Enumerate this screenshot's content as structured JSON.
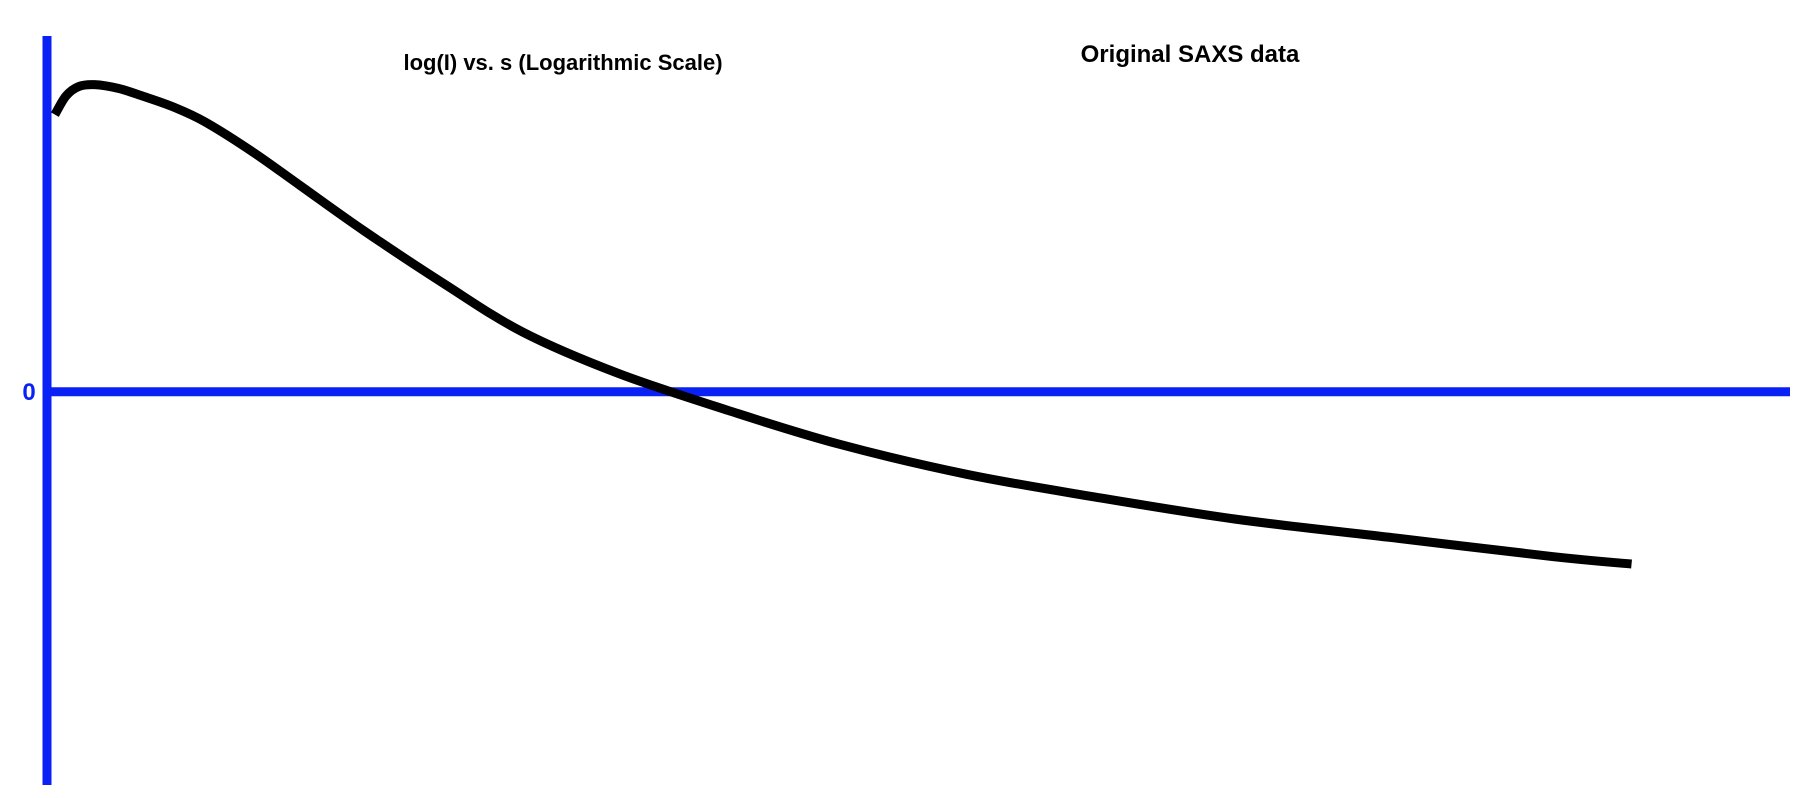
{
  "chart_data": {
    "type": "line",
    "title": "Original SAXS data",
    "subtitle": "log(I) vs. s (Logarithmic Scale)",
    "xlabel": "",
    "ylabel": "",
    "y_ticks": [
      {
        "value": 0,
        "label": "0"
      }
    ],
    "xlim": [
      0,
      1.1
    ],
    "ylim": [
      -1.05,
      0.95
    ],
    "grid": false,
    "legend": "none",
    "series": [
      {
        "x": [
          0.005,
          0.012,
          0.02,
          0.03,
          0.045,
          0.06,
          0.08,
          0.1,
          0.13,
          0.16,
          0.2,
          0.25,
          0.3,
          0.36,
          0.43,
          0.5,
          0.58,
          0.66,
          0.75,
          0.85,
          0.95,
          1.0
        ],
        "y": [
          0.74,
          0.79,
          0.815,
          0.82,
          0.81,
          0.79,
          0.76,
          0.72,
          0.64,
          0.55,
          0.43,
          0.29,
          0.16,
          0.05,
          -0.05,
          -0.14,
          -0.22,
          -0.28,
          -0.34,
          -0.39,
          -0.44,
          -0.46
        ]
      }
    ],
    "colors": {
      "axis": "#0a21f5",
      "line": "#000000",
      "text": "#000000"
    }
  }
}
